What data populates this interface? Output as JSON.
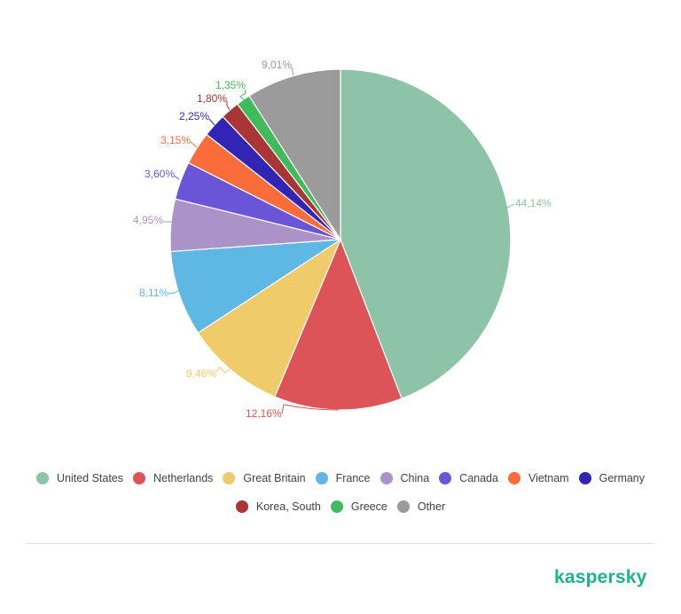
{
  "chart_data": {
    "type": "pie",
    "title": "",
    "start_angle": "12 o'clock, clockwise",
    "categories": [
      "United States",
      "Netherlands",
      "Great Britain",
      "France",
      "China",
      "Canada",
      "Vietnam",
      "Germany",
      "Korea, South",
      "Greece",
      "Other"
    ],
    "values": [
      44.14,
      12.16,
      9.46,
      8.11,
      4.95,
      3.6,
      3.15,
      2.25,
      1.8,
      1.35,
      9.01
    ],
    "labels": [
      "44,14%",
      "12,16%",
      "9,46%",
      "8,11%",
      "4,95%",
      "3,60%",
      "3,15%",
      "2,25%",
      "1,80%",
      "1,35%",
      "9,01%"
    ],
    "colors": [
      "#8dc4a8",
      "#dd5458",
      "#f0cb6a",
      "#5fb7e4",
      "#ab92c7",
      "#6a55d9",
      "#fb6c3b",
      "#3325b3",
      "#a93536",
      "#3fbb5c",
      "#9b9b9b"
    ],
    "legend_position": "bottom"
  },
  "legend": [
    {
      "label": "United States",
      "color": "#8dc4a8"
    },
    {
      "label": "Netherlands",
      "color": "#dd5458"
    },
    {
      "label": "Great Britain",
      "color": "#f0cb6a"
    },
    {
      "label": "France",
      "color": "#5fb7e4"
    },
    {
      "label": "China",
      "color": "#ab92c7"
    },
    {
      "label": "Canada",
      "color": "#6a55d9"
    },
    {
      "label": "Vietnam",
      "color": "#fb6c3b"
    },
    {
      "label": "Germany",
      "color": "#3325b3"
    },
    {
      "label": "Korea, South",
      "color": "#a93536"
    },
    {
      "label": "Greece",
      "color": "#3fbb5c"
    },
    {
      "label": "Other",
      "color": "#9b9b9b"
    }
  ],
  "brand": {
    "logo_text": "kaspersky",
    "color": "#1db48c"
  }
}
